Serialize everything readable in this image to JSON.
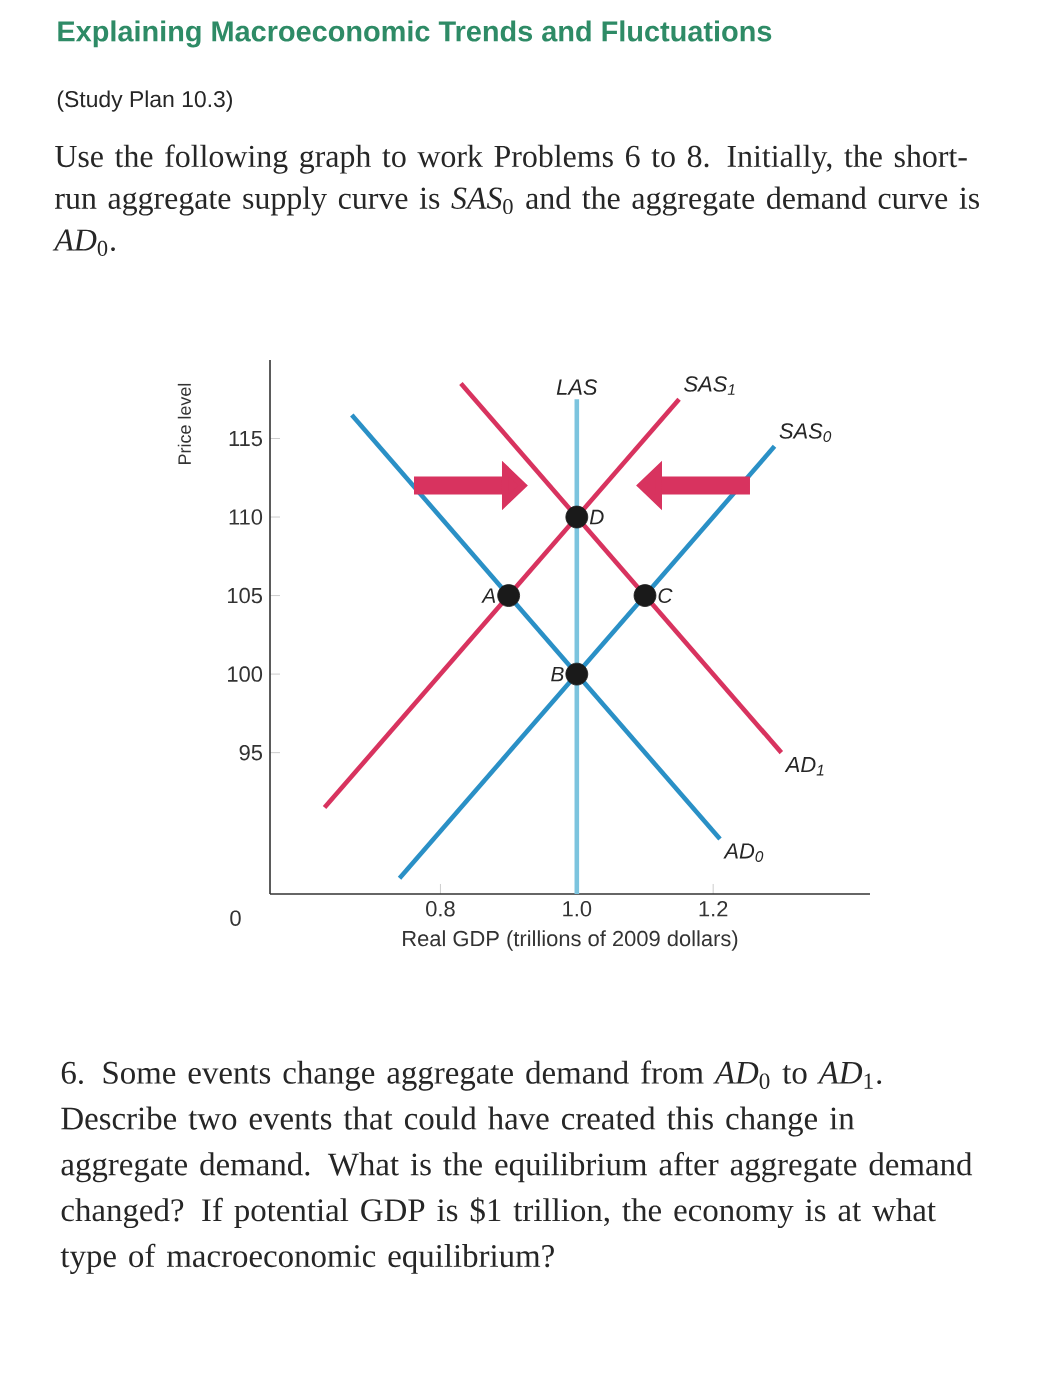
{
  "chart_data": {
    "type": "line",
    "title": "Explaining Macroeconomic Trends and Fluctuations",
    "subtitle": "(Study Plan 10.3)",
    "xlabel": "Real GDP (trillions of 2009 dollars)",
    "ylabel": "Price level",
    "xlim": [
      0.55,
      1.43
    ],
    "ylim": [
      86,
      120
    ],
    "xticks": [
      0.8,
      {
        "value": 1.0,
        "label": "1.0"
      },
      1.2
    ],
    "yticks": [
      95,
      100,
      105,
      110,
      115
    ],
    "marker": "none",
    "series": [
      {
        "name": "LAS",
        "color": "#7cc4de",
        "x": [
          1.0,
          1.0
        ],
        "values": [
          86,
          117.5
        ]
      },
      {
        "name": "SAS$_{1}$",
        "color": "#d8335f",
        "x": [
          0.63,
          1.15
        ],
        "values": [
          91.5,
          117.5
        ]
      },
      {
        "name": "SAS$_{0}$",
        "color": "#2a90c6",
        "x": [
          0.74,
          1.29
        ],
        "values": [
          87,
          114.5
        ]
      },
      {
        "name": "AD$_{1}$",
        "color": "#d8335f",
        "x": [
          0.83,
          1.3
        ],
        "values": [
          118.5,
          95
        ]
      },
      {
        "name": "AD$_{0}$",
        "color": "#2a90c6",
        "x": [
          0.67,
          1.21
        ],
        "values": [
          116.5,
          89.5
        ]
      },
      {
        "type": "scatter",
        "marker": "circle",
        "color": "#1a1a1a",
        "x": [
          0.9,
          1.0,
          1.1,
          1.0
        ],
        "values": [
          105,
          100,
          105,
          110
        ]
      }
    ],
    "annotations": [
      "Use the following graph to work Problems 6 to 8. Initially, the short-run aggregate supply curve is *SAS*$_{0}$ and the aggregate demand curve is *AD*$_{0}$.",
      "6. Some events change aggregate demand from *AD*$_{0}$ to *AD*$_{1}$. Describe two events that could have created this change in aggregate demand. What is the equilibrium after aggregate demand changed? If potential GDP is $1 trillion, the economy is at what type of macroeconomic equilibrium?",
      "0",
      {
        "text": "A",
        "x": 0.9,
        "y": 105
      },
      {
        "text": "B",
        "x": 1.0,
        "y": 100
      },
      {
        "text": "C",
        "x": 1.1,
        "y": 105
      },
      {
        "text": "D",
        "x": 1.0,
        "y": 110
      }
    ]
  }
}
